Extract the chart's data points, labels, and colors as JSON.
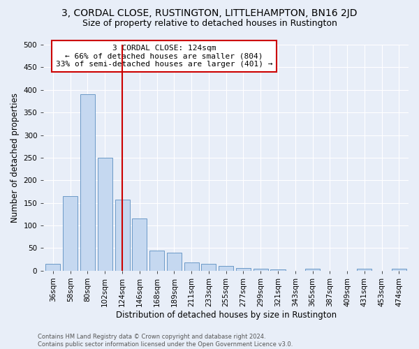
{
  "title": "3, CORDAL CLOSE, RUSTINGTON, LITTLEHAMPTON, BN16 2JD",
  "subtitle": "Size of property relative to detached houses in Rustington",
  "xlabel": "Distribution of detached houses by size in Rustington",
  "ylabel": "Number of detached properties",
  "footnote1": "Contains HM Land Registry data © Crown copyright and database right 2024.",
  "footnote2": "Contains public sector information licensed under the Open Government Licence v3.0.",
  "bar_labels": [
    "36sqm",
    "58sqm",
    "80sqm",
    "102sqm",
    "124sqm",
    "146sqm",
    "168sqm",
    "189sqm",
    "211sqm",
    "233sqm",
    "255sqm",
    "277sqm",
    "299sqm",
    "321sqm",
    "343sqm",
    "365sqm",
    "387sqm",
    "409sqm",
    "431sqm",
    "453sqm",
    "474sqm"
  ],
  "bar_values": [
    15,
    165,
    390,
    250,
    157,
    115,
    44,
    40,
    18,
    15,
    10,
    6,
    5,
    2,
    0,
    5,
    0,
    0,
    5,
    0,
    5
  ],
  "bar_color": "#c5d8f0",
  "bar_edge_color": "#5a8ec0",
  "vline_x": 4,
  "vline_color": "#cc0000",
  "annotation_text": "3 CORDAL CLOSE: 124sqm\n← 66% of detached houses are smaller (804)\n33% of semi-detached houses are larger (401) →",
  "annotation_box_color": "#ffffff",
  "annotation_box_edge_color": "#cc0000",
  "ylim": [
    0,
    500
  ],
  "yticks": [
    0,
    50,
    100,
    150,
    200,
    250,
    300,
    350,
    400,
    450,
    500
  ],
  "bg_color": "#e8eef8",
  "grid_color": "#ffffff",
  "title_fontsize": 10,
  "subtitle_fontsize": 9,
  "axis_label_fontsize": 8.5,
  "tick_fontsize": 7.5,
  "annot_fontsize": 8
}
